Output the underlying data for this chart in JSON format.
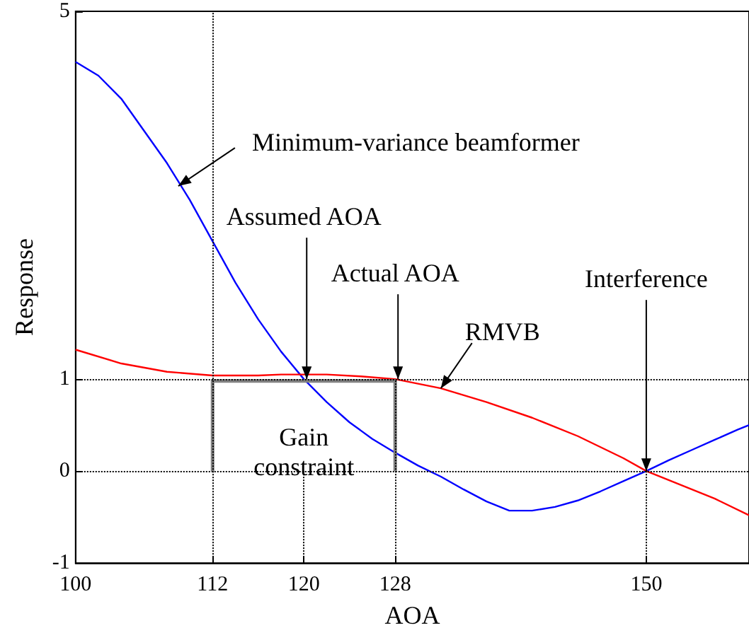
{
  "chart_data": {
    "type": "line",
    "xlabel": "AOA",
    "ylabel": "Response",
    "xlim": [
      100,
      159
    ],
    "xticks": [
      100,
      112,
      120,
      128,
      150
    ],
    "ylim": [
      -1,
      5
    ],
    "yticks": [
      -1,
      0,
      1,
      5
    ],
    "marker": "none",
    "line_style": "solid",
    "grid": false,
    "series": [
      {
        "color": "#0000ff",
        "x": [
          100,
          102,
          104,
          106,
          108,
          110,
          112,
          114,
          116,
          118,
          120,
          122,
          124,
          126,
          128,
          130,
          132,
          134,
          136,
          138,
          140,
          142,
          144,
          146,
          148,
          150,
          152,
          154,
          156,
          158,
          159
        ],
        "values": [
          4.45,
          4.3,
          4.05,
          3.7,
          3.35,
          2.95,
          2.5,
          2.05,
          1.65,
          1.3,
          1.0,
          0.75,
          0.53,
          0.35,
          0.2,
          0.06,
          -0.06,
          -0.2,
          -0.33,
          -0.43,
          -0.43,
          -0.39,
          -0.32,
          -0.22,
          -0.11,
          0.0,
          0.12,
          0.23,
          0.34,
          0.45,
          0.5
        ]
      },
      {
        "color": "#ff0000",
        "x": [
          100,
          104,
          108,
          112,
          116,
          118,
          122,
          125,
          128,
          132,
          136,
          140,
          144,
          148,
          150,
          152,
          156,
          159
        ],
        "values": [
          1.32,
          1.17,
          1.08,
          1.04,
          1.04,
          1.05,
          1.05,
          1.03,
          1.0,
          0.9,
          0.75,
          0.58,
          0.38,
          0.14,
          0.0,
          -0.1,
          -0.3,
          -0.48
        ]
      },
      {
        "color": "#808080",
        "x": [
          112,
          112,
          128,
          128
        ],
        "values": [
          0,
          0.98,
          0.98,
          0
        ]
      }
    ],
    "ref_lines": [
      {
        "axis": "y",
        "value": 1,
        "line_style": "dotted",
        "color": "#000000"
      },
      {
        "axis": "y",
        "value": 0,
        "line_style": "dotted",
        "color": "#000000"
      },
      {
        "axis": "x",
        "value": 112,
        "line_style": "dotted",
        "color": "#000000"
      },
      {
        "axis": "x",
        "value": 120,
        "line_style": "dotted",
        "color": "#000000"
      },
      {
        "axis": "x",
        "value": 128,
        "line_style": "dotted",
        "color": "#000000"
      },
      {
        "axis": "x",
        "value": 150,
        "line_style": "dotted",
        "color": "#000000"
      }
    ],
    "annotations": [
      {
        "text": "Minimum-variance beamformer",
        "x": 109,
        "y": 3.1
      },
      {
        "text": "Assumed AOA",
        "x": 120,
        "y": 1.0
      },
      {
        "text": "Actual AOA",
        "x": 128,
        "y": 1.0
      },
      {
        "text": "Interference",
        "x": 150,
        "y": 0
      },
      {
        "text": "RMVB",
        "x": 132,
        "y": 0.9
      },
      {
        "text": "Gain constraint",
        "x": 120,
        "y": 0
      }
    ]
  }
}
